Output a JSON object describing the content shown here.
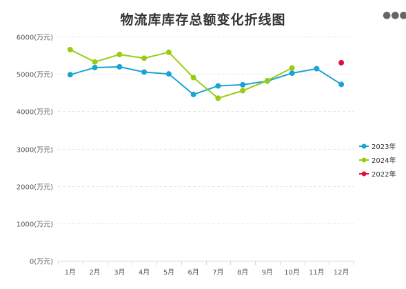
{
  "title": "物流库库存总额变化折线图",
  "menu_icon": "more-dots-icon",
  "colors": {
    "axis": "#ccd6eb",
    "grid": "#e6e6e6",
    "tick_text": "#555555"
  },
  "chart_data": {
    "type": "line",
    "title": "物流库库存总额变化折线图",
    "categories": [
      "1月",
      "2月",
      "3月",
      "4月",
      "5月",
      "6月",
      "7月",
      "8月",
      "9月",
      "10月",
      "11月",
      "12月"
    ],
    "ylim": [
      0,
      6000
    ],
    "y_ticks": [
      0,
      1000,
      2000,
      3000,
      4000,
      5000,
      6000
    ],
    "y_tick_suffix": "(万元)",
    "grid": true,
    "legend_position": "right",
    "series": [
      {
        "name": "2023年",
        "color": "#1aa3d6",
        "values": [
          4980,
          5170,
          5190,
          5050,
          5000,
          4450,
          4680,
          4710,
          4810,
          5020,
          5140,
          4720
        ]
      },
      {
        "name": "2024年",
        "color": "#99cc11",
        "values": [
          5650,
          5320,
          5520,
          5420,
          5580,
          4900,
          4350,
          4550,
          4820,
          5160,
          null,
          null
        ]
      },
      {
        "name": "2022年",
        "color": "#e0113d",
        "values": [
          null,
          null,
          null,
          null,
          null,
          null,
          null,
          null,
          null,
          null,
          null,
          5300
        ]
      }
    ]
  }
}
